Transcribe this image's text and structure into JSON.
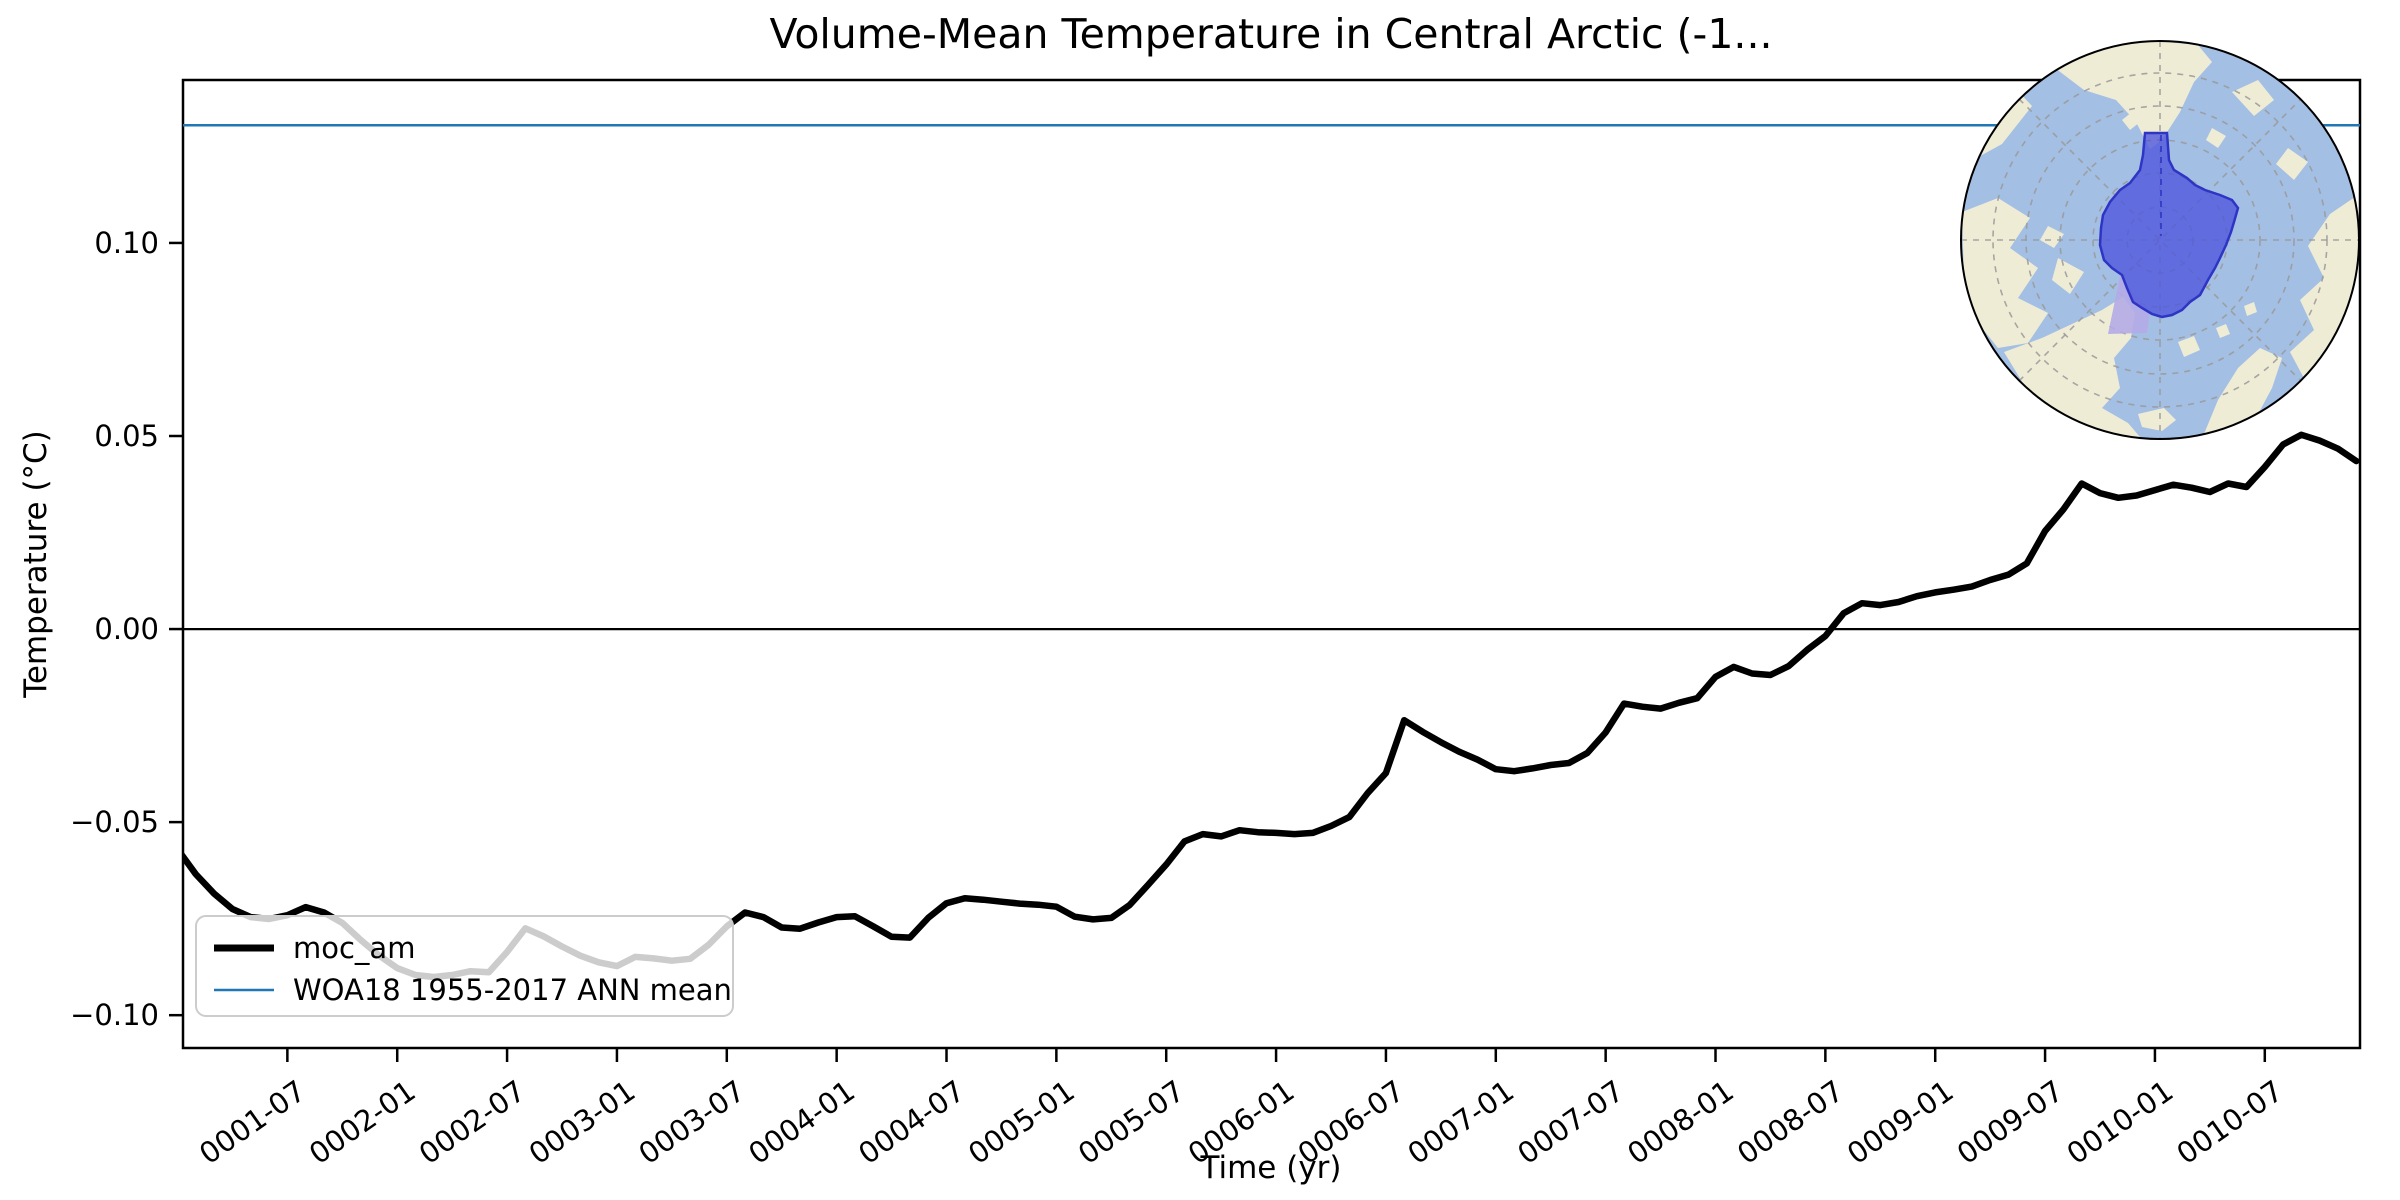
{
  "chart_data": {
    "type": "line",
    "title": "Volume-Mean Temperature in Central Arctic (-1...",
    "xlabel": "Time (yr)",
    "ylabel": "Temperature (°C)",
    "grid": false,
    "legend_position": "lower left",
    "x_start": "0001-01",
    "x_step_months": 1,
    "n_points": 120,
    "xlim_months": [
      0.3,
      119.2
    ],
    "ylim": [
      -0.1085,
      0.1422
    ],
    "zero_line": 0.0,
    "y_ticks": [
      {
        "label": "0.10",
        "value": 0.1
      },
      {
        "label": "0.05",
        "value": 0.05
      },
      {
        "label": "0.00",
        "value": 0.0
      },
      {
        "label": "−0.05",
        "value": -0.05
      },
      {
        "label": "−0.10",
        "value": -0.1
      }
    ],
    "x_ticks": [
      {
        "label": "0001-07",
        "month": 6
      },
      {
        "label": "0002-01",
        "month": 12
      },
      {
        "label": "0002-07",
        "month": 18
      },
      {
        "label": "0003-01",
        "month": 24
      },
      {
        "label": "0003-07",
        "month": 30
      },
      {
        "label": "0004-01",
        "month": 36
      },
      {
        "label": "0004-07",
        "month": 42
      },
      {
        "label": "0005-01",
        "month": 48
      },
      {
        "label": "0005-07",
        "month": 54
      },
      {
        "label": "0006-01",
        "month": 60
      },
      {
        "label": "0006-07",
        "month": 66
      },
      {
        "label": "0007-01",
        "month": 72
      },
      {
        "label": "0007-07",
        "month": 78
      },
      {
        "label": "0008-01",
        "month": 84
      },
      {
        "label": "0008-07",
        "month": 90
      },
      {
        "label": "0009-01",
        "month": 96
      },
      {
        "label": "0009-07",
        "month": 102
      },
      {
        "label": "0010-01",
        "month": 108
      },
      {
        "label": "0010-07",
        "month": 114
      }
    ],
    "series": [
      {
        "name": "moc_am",
        "color": "#000000",
        "line_width": 6.5,
        "values": [
          -0.057,
          -0.0635,
          -0.0685,
          -0.0725,
          -0.0746,
          -0.0751,
          -0.0741,
          -0.072,
          -0.0734,
          -0.0761,
          -0.0805,
          -0.0845,
          -0.0878,
          -0.0896,
          -0.0901,
          -0.0896,
          -0.0886,
          -0.0889,
          -0.0836,
          -0.0775,
          -0.0796,
          -0.0822,
          -0.0846,
          -0.0863,
          -0.0873,
          -0.0849,
          -0.0853,
          -0.0859,
          -0.0854,
          -0.0818,
          -0.077,
          -0.0734,
          -0.0746,
          -0.0773,
          -0.0776,
          -0.076,
          -0.0746,
          -0.0744,
          -0.077,
          -0.0797,
          -0.0799,
          -0.0748,
          -0.071,
          -0.0697,
          -0.0701,
          -0.0706,
          -0.0711,
          -0.0714,
          -0.0719,
          -0.0745,
          -0.0752,
          -0.0748,
          -0.0715,
          -0.0663,
          -0.061,
          -0.055,
          -0.0531,
          -0.0537,
          -0.0521,
          -0.0526,
          -0.0528,
          -0.0531,
          -0.0528,
          -0.051,
          -0.0487,
          -0.0425,
          -0.0373,
          -0.0236,
          -0.0266,
          -0.0293,
          -0.0318,
          -0.0338,
          -0.0363,
          -0.0368,
          -0.0361,
          -0.0352,
          -0.0347,
          -0.0321,
          -0.0268,
          -0.0193,
          -0.0201,
          -0.0206,
          -0.0191,
          -0.0179,
          -0.0124,
          -0.0098,
          -0.0115,
          -0.0119,
          -0.0096,
          -0.0054,
          -0.0018,
          0.0041,
          0.0067,
          0.0062,
          0.007,
          0.0085,
          0.0095,
          0.0102,
          0.011,
          0.0127,
          0.0141,
          0.017,
          0.0254,
          0.031,
          0.0377,
          0.0352,
          0.034,
          0.0346,
          0.036,
          0.0374,
          0.0366,
          0.0355,
          0.0377,
          0.0368,
          0.042,
          0.0478,
          0.0503,
          0.0488,
          0.0467,
          0.0435
        ]
      },
      {
        "name": "WOA18 1955-2017 ANN mean",
        "color": "#1f77b4",
        "line_width": 2.5,
        "constant": 0.1305
      }
    ]
  },
  "legend": {
    "items": [
      {
        "label": "moc_am"
      },
      {
        "label": "WOA18 1955-2017 ANN mean"
      }
    ]
  },
  "inset_map": {
    "description": "polar stereographic Arctic inset highlighting Central Arctic region",
    "ocean_color": "#a4bfe4",
    "land_color": "#efecd6",
    "region_fill": "#5058dc",
    "region_edge": "#2e35c4",
    "patch_fill": "#b4abe6"
  }
}
